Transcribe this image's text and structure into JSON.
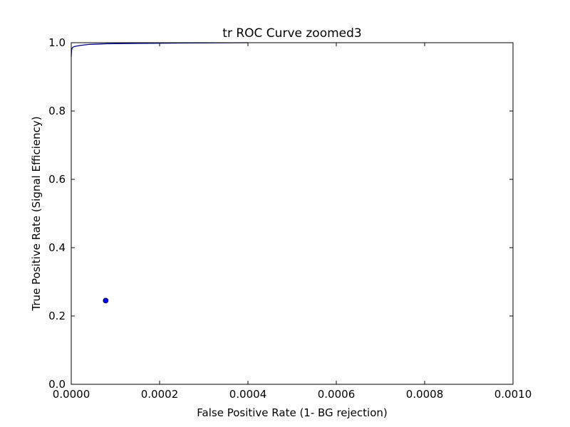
{
  "chart_data": {
    "type": "line",
    "title": "tr ROC Curve zoomed3",
    "xlabel": "False Positive Rate (1- BG rejection)",
    "ylabel": "True Positive Rate (Signal Efficiency)",
    "xlim": [
      0,
      0.001
    ],
    "ylim": [
      0,
      1.0
    ],
    "xticks": [
      "0.0000",
      "0.0002",
      "0.0004",
      "0.0006",
      "0.0008",
      "0.0010"
    ],
    "yticks": [
      "0.0",
      "0.2",
      "0.4",
      "0.6",
      "0.8",
      "1.0"
    ],
    "grid": false,
    "colors": {
      "line": "#00008b",
      "marker": "#0000ff",
      "marker_edge": "#000000"
    },
    "series": [
      {
        "kind": "line",
        "x": [
          0.0,
          8e-07,
          2e-06,
          4e-06,
          8e-06,
          2e-05,
          4e-05,
          8e-05,
          0.00015,
          0.00025,
          0.0004
        ],
        "y": [
          0.96,
          0.978,
          0.984,
          0.987,
          0.989,
          0.992,
          0.995,
          0.997,
          0.998,
          0.999,
          1.0
        ]
      },
      {
        "kind": "point",
        "x": [
          7.8e-05
        ],
        "y": [
          0.245
        ]
      }
    ]
  }
}
